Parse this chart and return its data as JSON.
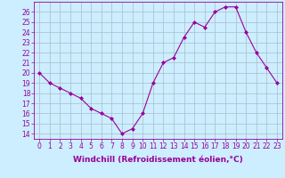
{
  "x": [
    0,
    1,
    2,
    3,
    4,
    5,
    6,
    7,
    8,
    9,
    10,
    11,
    12,
    13,
    14,
    15,
    16,
    17,
    18,
    19,
    20,
    21,
    22,
    23
  ],
  "y": [
    20,
    19,
    18.5,
    18,
    17.5,
    16.5,
    16,
    15.5,
    14,
    14.5,
    16,
    19,
    21,
    21.5,
    23.5,
    25,
    24.5,
    26,
    26.5,
    26.5,
    24,
    22,
    20.5,
    19
  ],
  "line_color": "#990099",
  "marker": "D",
  "marker_size": 2,
  "bg_color": "#cceeff",
  "grid_color": "#aabbcc",
  "xlabel": "Windchill (Refroidissement éolien,°C)",
  "xlabel_fontsize": 6.5,
  "ylim": [
    13.5,
    27
  ],
  "xlim": [
    -0.5,
    23.5
  ],
  "yticks": [
    14,
    15,
    16,
    17,
    18,
    19,
    20,
    21,
    22,
    23,
    24,
    25,
    26
  ],
  "xticks": [
    0,
    1,
    2,
    3,
    4,
    5,
    6,
    7,
    8,
    9,
    10,
    11,
    12,
    13,
    14,
    15,
    16,
    17,
    18,
    19,
    20,
    21,
    22,
    23
  ],
  "tick_fontsize": 5.5,
  "tick_color": "#990099",
  "spine_color": "#990099",
  "xlabel_fontweight": "bold"
}
